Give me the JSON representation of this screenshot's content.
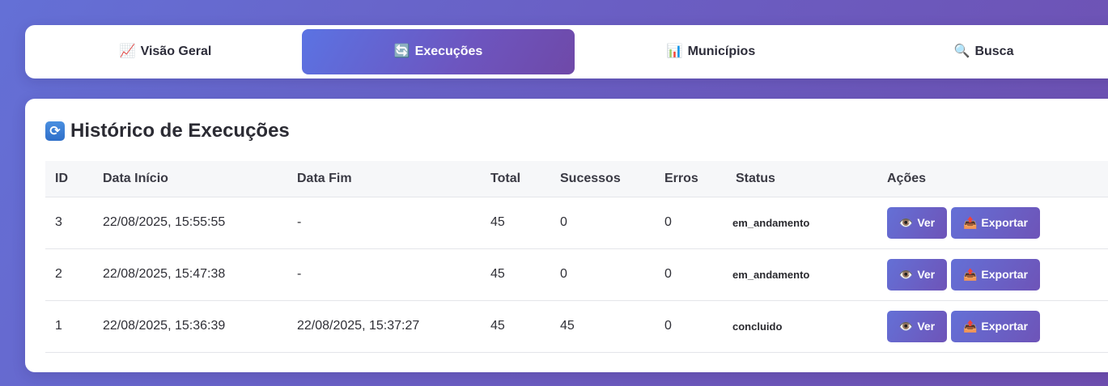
{
  "tabs": [
    {
      "icon": "📈",
      "label": "Visão Geral"
    },
    {
      "icon": "🔄",
      "label": "Execuções"
    },
    {
      "icon": "📊",
      "label": "Municípios"
    },
    {
      "icon": "🔍",
      "label": "Busca"
    }
  ],
  "active_tab": "Execuções",
  "panel": {
    "icon": "🔄",
    "title": "Histórico de Execuções"
  },
  "table": {
    "headers": [
      "ID",
      "Data Início",
      "Data Fim",
      "Total",
      "Sucessos",
      "Erros",
      "Status",
      "Ações"
    ],
    "rows": [
      {
        "id": "3",
        "inicio": "22/08/2025, 15:55:55",
        "fim": "-",
        "total": "45",
        "sucessos": "0",
        "erros": "0",
        "status": "em_andamento"
      },
      {
        "id": "2",
        "inicio": "22/08/2025, 15:47:38",
        "fim": "-",
        "total": "45",
        "sucessos": "0",
        "erros": "0",
        "status": "em_andamento"
      },
      {
        "id": "1",
        "inicio": "22/08/2025, 15:36:39",
        "fim": "22/08/2025, 15:37:27",
        "total": "45",
        "sucessos": "45",
        "erros": "0",
        "status": "concluido"
      }
    ]
  },
  "actions": {
    "ver_icon": "👁️",
    "ver_label": "Ver",
    "export_icon": "📤",
    "export_label": "Exportar"
  },
  "colors": {
    "accent_start": "#5b73e3",
    "accent_end": "#6f49a8",
    "background": "#6a5fc4"
  }
}
